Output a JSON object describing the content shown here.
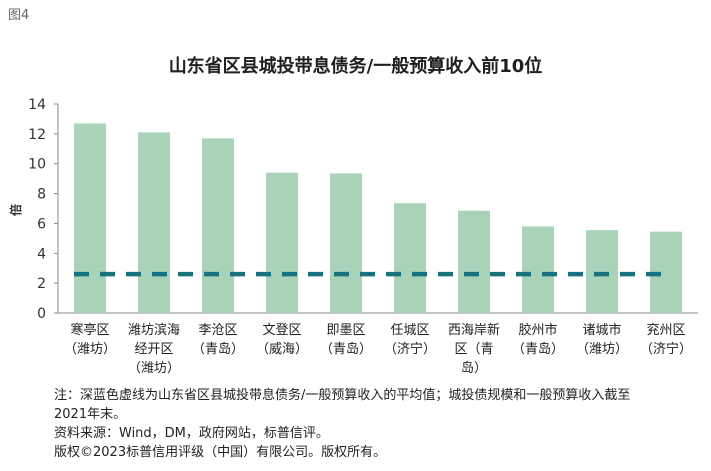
{
  "figure_label": "图4",
  "chart_data": {
    "type": "bar",
    "title": "山东省区县城投带息债务/一般预算收入前10位",
    "ylabel": "倍",
    "ylim": [
      0,
      14
    ],
    "yticks": [
      0,
      2,
      4,
      6,
      8,
      10,
      12,
      14
    ],
    "categories": [
      [
        "寒亭区",
        "（潍坊）"
      ],
      [
        "潍坊滨海",
        "经开区",
        "（潍坊）"
      ],
      [
        "李沧区",
        "（青岛）"
      ],
      [
        "文登区",
        "（威海）"
      ],
      [
        "即墨区",
        "（青岛）"
      ],
      [
        "任城区",
        "（济宁）"
      ],
      [
        "西海岸新",
        "区（青",
        "岛）"
      ],
      [
        "胶州市",
        "（青岛）"
      ],
      [
        "诸城市",
        "（潍坊）"
      ],
      [
        "兖州区",
        "（济宁）"
      ]
    ],
    "values": [
      12.7,
      12.1,
      11.7,
      9.4,
      9.35,
      7.35,
      6.85,
      5.8,
      5.55,
      5.45
    ],
    "average_line": 2.6,
    "grid": false,
    "colors": {
      "bar": "#a8d3b9",
      "average": "#17727d",
      "axis": "#888888"
    }
  },
  "notes": [
    "注：深蓝色虚线为山东省区县城投带息债务/一般预算收入的平均值；城投债规模和一般预算收入截至",
    "2021年末。",
    "资料来源：Wind，DM，政府网站，标普信评。",
    "版权©2023标普信用评级（中国）有限公司。版权所有。"
  ]
}
